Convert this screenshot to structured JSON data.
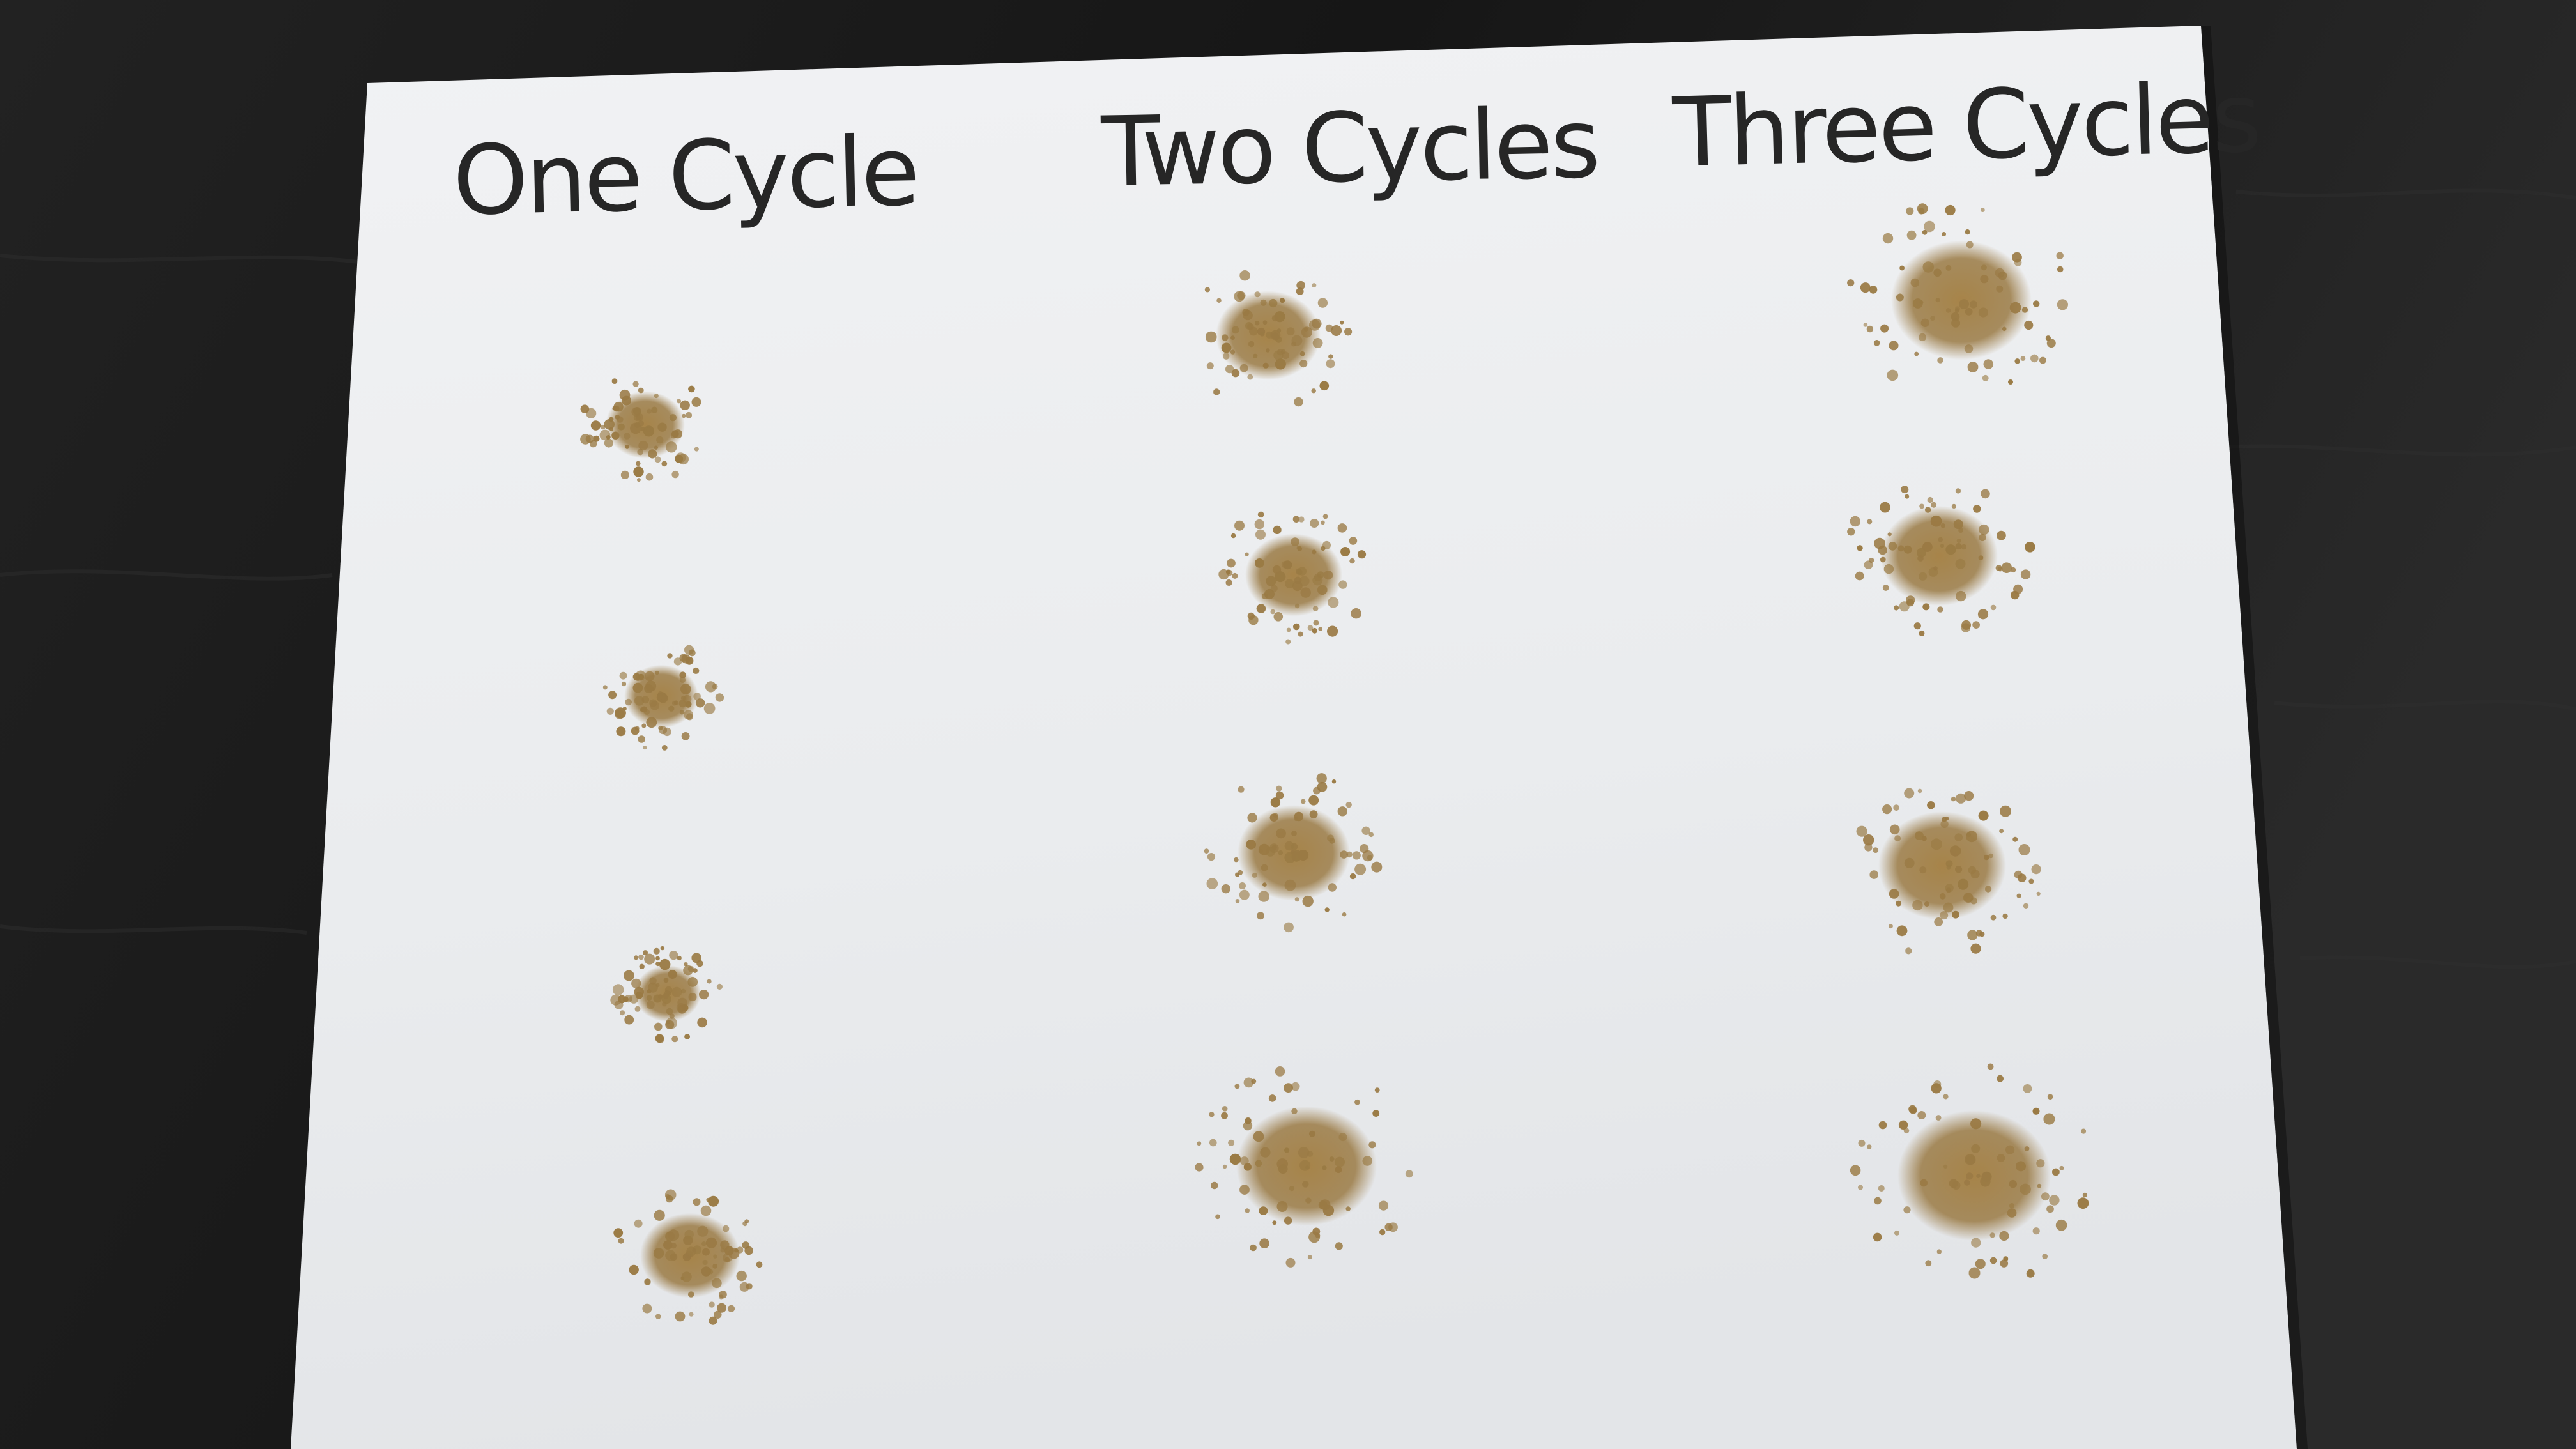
{
  "photo": {
    "subject": "Sheet of white paper on a dark wood table with three columns of granular brown powder piles",
    "columns": [
      {
        "label": "One Cycle",
        "pile_count": 4
      },
      {
        "label": "Two Cycles",
        "pile_count": 4
      },
      {
        "label": "Three Cycles",
        "pile_count": 4
      }
    ],
    "colors": {
      "table": "#1b1b1b",
      "paper": "#eceef0",
      "powder": "#9a7a44",
      "ink": "#262626"
    }
  }
}
